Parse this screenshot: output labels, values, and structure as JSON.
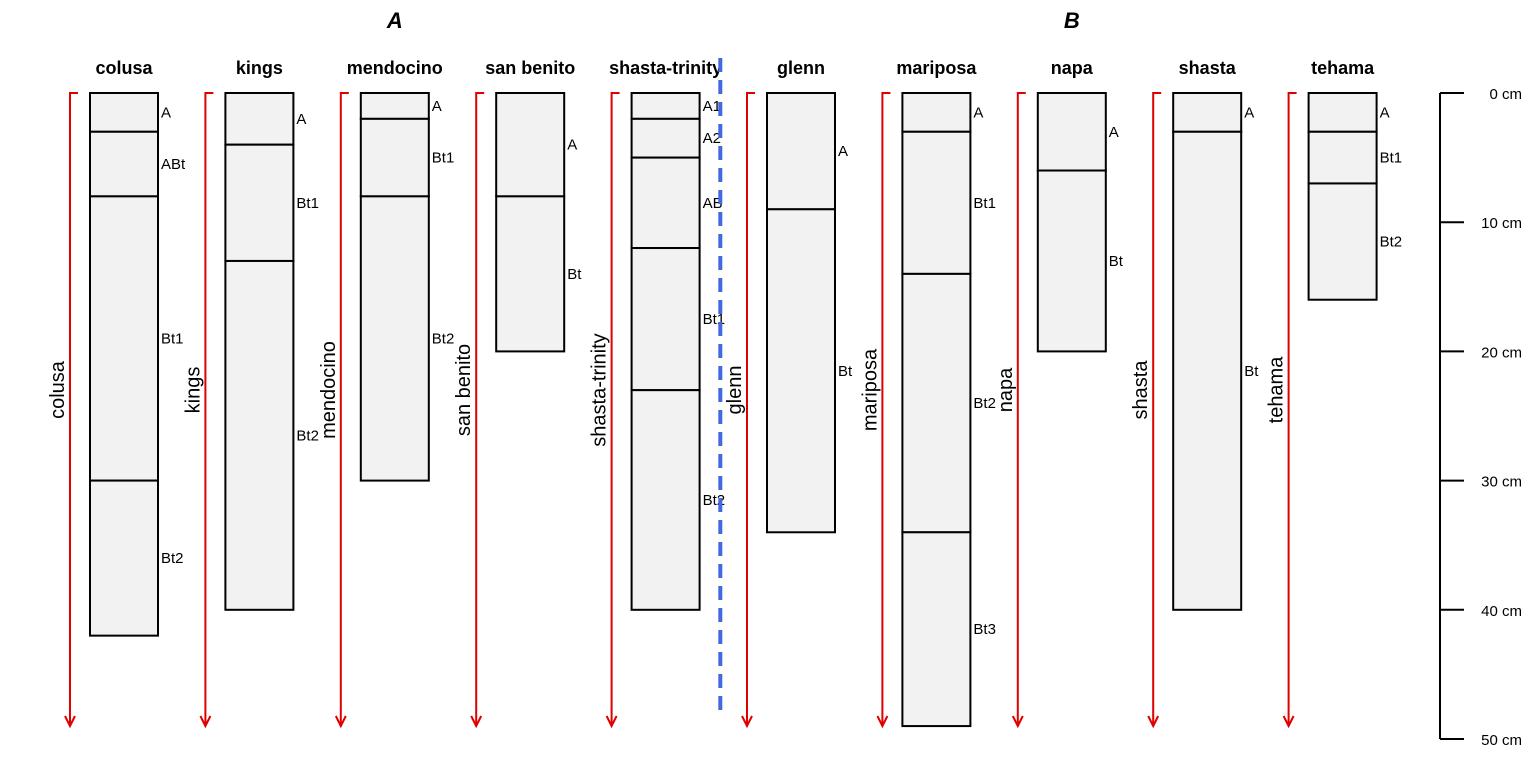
{
  "figure": {
    "groups": [
      {
        "label": "A",
        "profiles": [
          "colusa",
          "kings",
          "mendocino",
          "san benito",
          "shasta-trinity"
        ]
      },
      {
        "label": "B",
        "profiles": [
          "glenn",
          "mariposa",
          "napa",
          "shasta",
          "tehama"
        ]
      }
    ],
    "axis": {
      "ticks": [
        0,
        10,
        20,
        30,
        40,
        50
      ],
      "unit": "cm",
      "max_depth": 50
    },
    "profiles": [
      {
        "name": "colusa",
        "horizons": [
          {
            "name": "A",
            "top": 0,
            "bottom": 3
          },
          {
            "name": "ABt",
            "top": 3,
            "bottom": 8
          },
          {
            "name": "Bt1",
            "top": 8,
            "bottom": 30
          },
          {
            "name": "Bt2",
            "top": 30,
            "bottom": 42
          }
        ]
      },
      {
        "name": "kings",
        "horizons": [
          {
            "name": "A",
            "top": 0,
            "bottom": 4
          },
          {
            "name": "Bt1",
            "top": 4,
            "bottom": 13
          },
          {
            "name": "Bt2",
            "top": 13,
            "bottom": 40
          }
        ]
      },
      {
        "name": "mendocino",
        "horizons": [
          {
            "name": "A",
            "top": 0,
            "bottom": 2
          },
          {
            "name": "Bt1",
            "top": 2,
            "bottom": 8
          },
          {
            "name": "Bt2",
            "top": 8,
            "bottom": 30
          }
        ]
      },
      {
        "name": "san benito",
        "horizons": [
          {
            "name": "A",
            "top": 0,
            "bottom": 8
          },
          {
            "name": "Bt",
            "top": 8,
            "bottom": 20
          }
        ]
      },
      {
        "name": "shasta-trinity",
        "horizons": [
          {
            "name": "A1",
            "top": 0,
            "bottom": 2
          },
          {
            "name": "A2",
            "top": 2,
            "bottom": 5
          },
          {
            "name": "AB",
            "top": 5,
            "bottom": 12
          },
          {
            "name": "Bt1",
            "top": 12,
            "bottom": 23
          },
          {
            "name": "Bt2",
            "top": 23,
            "bottom": 40
          }
        ]
      },
      {
        "name": "glenn",
        "horizons": [
          {
            "name": "A",
            "top": 0,
            "bottom": 9
          },
          {
            "name": "Bt",
            "top": 9,
            "bottom": 34
          }
        ]
      },
      {
        "name": "mariposa",
        "horizons": [
          {
            "name": "A",
            "top": 0,
            "bottom": 3
          },
          {
            "name": "Bt1",
            "top": 3,
            "bottom": 14
          },
          {
            "name": "Bt2",
            "top": 14,
            "bottom": 34
          },
          {
            "name": "Bt3",
            "top": 34,
            "bottom": 49
          }
        ]
      },
      {
        "name": "napa",
        "horizons": [
          {
            "name": "A",
            "top": 0,
            "bottom": 6
          },
          {
            "name": "Bt",
            "top": 6,
            "bottom": 20
          }
        ]
      },
      {
        "name": "shasta",
        "horizons": [
          {
            "name": "A",
            "top": 0,
            "bottom": 3
          },
          {
            "name": "Bt",
            "top": 3,
            "bottom": 40
          }
        ]
      },
      {
        "name": "tehama",
        "horizons": [
          {
            "name": "A",
            "top": 0,
            "bottom": 3
          },
          {
            "name": "Bt1",
            "top": 3,
            "bottom": 7
          },
          {
            "name": "Bt2",
            "top": 7,
            "bottom": 16
          }
        ]
      }
    ],
    "colors": {
      "horizon_fill": "#f2f2f2",
      "arrow": "#e00000",
      "divider": "#4169e1"
    }
  }
}
